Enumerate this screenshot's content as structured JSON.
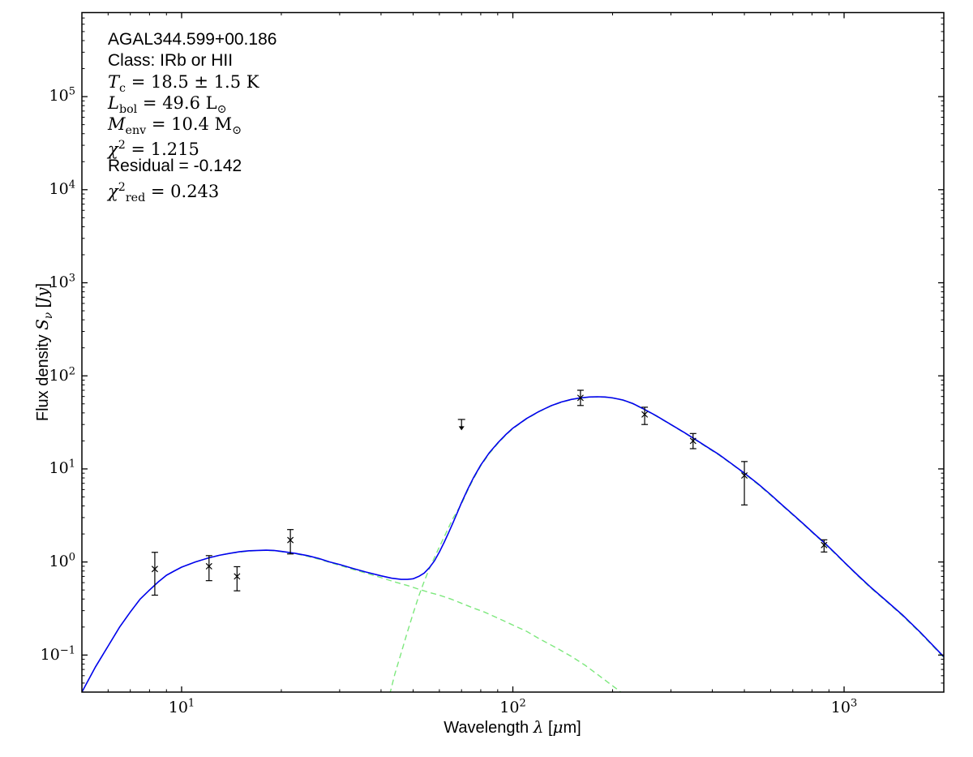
{
  "chart_data": {
    "type": "line",
    "description": "Spectral energy distribution (SED) of a dense clump with two-component greybody fit",
    "xlabel": "Wavelength *λ* [*μ*m]",
    "ylabel": "Flux density *S*_{*ν*} [*Jy*]",
    "x_scale": "log",
    "y_scale": "log",
    "xlim": [
      5,
      2000
    ],
    "ylim": [
      0.04,
      800000
    ],
    "x_major_tick_exponents": [
      1,
      2,
      3
    ],
    "y_major_tick_exponents": [
      -1,
      0,
      1,
      2,
      3,
      4,
      5
    ],
    "grid": false,
    "legend": "none",
    "colors": {
      "model_total": "#0000ee",
      "components": "#7de87d",
      "data": "#000000",
      "axes": "#000000"
    },
    "annotations": [
      {
        "name": "source-name",
        "font": "sans",
        "text": "AGAL344.599+00.186"
      },
      {
        "name": "source-class",
        "font": "sans",
        "text": "Class: IRb or HII"
      },
      {
        "name": "dust-temperature",
        "font": "math",
        "text": "*T*_{c} = 18.5 ± 1.5 K"
      },
      {
        "name": "bolometric-luminosity",
        "font": "math",
        "text": "*L*_{bol} = 49.6 L_{⊙}"
      },
      {
        "name": "envelope-mass",
        "font": "math",
        "text": "*M*_{env} = 10.4 M_{⊙}"
      },
      {
        "name": "chi-squared",
        "font": "math",
        "text": "*χ*^{2} = 1.215"
      },
      {
        "name": "residual",
        "font": "sans",
        "text": "Residual = -0.142"
      },
      {
        "name": "chi-squared-reduced",
        "font": "math",
        "text": "*χ*^{2}_{red} = 0.243"
      }
    ],
    "series": [
      {
        "name": "cold-component-curve",
        "style": "dashed",
        "color": "#7de87d",
        "points": [
          [
            42.5,
            0.038
          ],
          [
            44,
            0.062
          ],
          [
            46,
            0.105
          ],
          [
            48,
            0.175
          ],
          [
            50,
            0.28
          ],
          [
            52,
            0.43
          ],
          [
            54,
            0.62
          ],
          [
            56,
            0.85
          ],
          [
            58,
            1.12
          ],
          [
            60,
            1.45
          ],
          [
            62,
            1.85
          ],
          [
            64,
            2.35
          ],
          [
            66,
            2.95
          ],
          [
            68,
            3.55
          ],
          [
            70,
            4.2
          ],
          [
            73,
            5.85
          ],
          [
            76,
            7.8
          ],
          [
            80,
            10.8
          ],
          [
            85,
            14.7
          ],
          [
            90,
            18.7
          ],
          [
            95,
            22.9
          ],
          [
            100,
            27.1
          ],
          [
            110,
            34.5
          ],
          [
            120,
            41.2
          ],
          [
            130,
            47.2
          ],
          [
            140,
            52.0
          ],
          [
            150,
            55.5
          ],
          [
            160,
            57.7
          ],
          [
            170,
            58.9
          ],
          [
            180,
            59.3
          ],
          [
            190,
            58.9
          ],
          [
            200,
            57.7
          ],
          [
            215,
            54.7
          ],
          [
            230,
            50.2
          ],
          [
            250,
            43.2
          ],
          [
            270,
            37.2
          ],
          [
            300,
            29.8
          ],
          [
            330,
            24.3
          ],
          [
            350,
            21.3
          ],
          [
            380,
            17.6
          ],
          [
            420,
            14.0
          ],
          [
            460,
            11.1
          ],
          [
            500,
            8.9
          ],
          [
            550,
            6.8
          ],
          [
            600,
            5.2
          ],
          [
            650,
            4.05
          ],
          [
            700,
            3.2
          ],
          [
            760,
            2.47
          ],
          [
            820,
            1.92
          ],
          [
            870,
            1.6
          ],
          [
            950,
            1.18
          ],
          [
            1000,
            0.99
          ],
          [
            1100,
            0.71
          ],
          [
            1200,
            0.53
          ],
          [
            1350,
            0.37
          ],
          [
            1500,
            0.265
          ],
          [
            1700,
            0.172
          ],
          [
            2000,
            0.094
          ]
        ]
      },
      {
        "name": "warm-component-curve",
        "style": "dashed",
        "color": "#7de87d",
        "points": [
          [
            5,
            0.04
          ],
          [
            5.5,
            0.075
          ],
          [
            6,
            0.125
          ],
          [
            6.5,
            0.2
          ],
          [
            7,
            0.29
          ],
          [
            7.5,
            0.4
          ],
          [
            8,
            0.5
          ],
          [
            8.5,
            0.61
          ],
          [
            9,
            0.72
          ],
          [
            9.5,
            0.8
          ],
          [
            10,
            0.88
          ],
          [
            11,
            1.0
          ],
          [
            12,
            1.1
          ],
          [
            13,
            1.18
          ],
          [
            14,
            1.24
          ],
          [
            15,
            1.28
          ],
          [
            16,
            1.31
          ],
          [
            17,
            1.33
          ],
          [
            18,
            1.33
          ],
          [
            19,
            1.32
          ],
          [
            20,
            1.29
          ],
          [
            22,
            1.23
          ],
          [
            24,
            1.15
          ],
          [
            26,
            1.07
          ],
          [
            28,
            0.99
          ],
          [
            30,
            0.92
          ],
          [
            33,
            0.83
          ],
          [
            36,
            0.76
          ],
          [
            40,
            0.68
          ],
          [
            44,
            0.61
          ],
          [
            48,
            0.56
          ],
          [
            52,
            0.51
          ],
          [
            56,
            0.47
          ],
          [
            60,
            0.44
          ],
          [
            65,
            0.4
          ],
          [
            70,
            0.36
          ],
          [
            76,
            0.32
          ],
          [
            82,
            0.29
          ],
          [
            90,
            0.25
          ],
          [
            100,
            0.21
          ],
          [
            110,
            0.18
          ],
          [
            120,
            0.15
          ],
          [
            135,
            0.12
          ],
          [
            150,
            0.097
          ],
          [
            165,
            0.078
          ],
          [
            180,
            0.062
          ],
          [
            195,
            0.05
          ],
          [
            210,
            0.041
          ],
          [
            218,
            0.037
          ]
        ]
      },
      {
        "name": "model-fit-curve",
        "style": "solid",
        "color": "#0000ee",
        "points": [
          [
            5,
            0.04
          ],
          [
            5.5,
            0.075
          ],
          [
            6,
            0.125
          ],
          [
            6.5,
            0.2
          ],
          [
            7,
            0.29
          ],
          [
            7.5,
            0.4
          ],
          [
            8,
            0.5
          ],
          [
            8.5,
            0.61
          ],
          [
            9,
            0.72
          ],
          [
            9.5,
            0.8
          ],
          [
            10,
            0.88
          ],
          [
            11,
            1.0
          ],
          [
            12,
            1.1
          ],
          [
            13,
            1.18
          ],
          [
            14,
            1.24
          ],
          [
            15,
            1.29
          ],
          [
            16,
            1.32
          ],
          [
            17,
            1.33
          ],
          [
            18,
            1.34
          ],
          [
            19,
            1.33
          ],
          [
            20,
            1.3
          ],
          [
            22,
            1.24
          ],
          [
            24,
            1.17
          ],
          [
            26,
            1.09
          ],
          [
            28,
            1.0
          ],
          [
            30,
            0.94
          ],
          [
            33,
            0.85
          ],
          [
            36,
            0.78
          ],
          [
            40,
            0.71
          ],
          [
            43,
            0.67
          ],
          [
            46,
            0.65
          ],
          [
            48,
            0.65
          ],
          [
            50,
            0.66
          ],
          [
            52,
            0.7
          ],
          [
            54,
            0.76
          ],
          [
            56,
            0.87
          ],
          [
            58,
            1.03
          ],
          [
            60,
            1.28
          ],
          [
            62,
            1.62
          ],
          [
            64,
            2.07
          ],
          [
            66,
            2.65
          ],
          [
            68,
            3.4
          ],
          [
            70,
            4.35
          ],
          [
            73,
            6.0
          ],
          [
            76,
            8.0
          ],
          [
            80,
            11.0
          ],
          [
            85,
            15.0
          ],
          [
            90,
            19.0
          ],
          [
            95,
            23.2
          ],
          [
            100,
            27.4
          ],
          [
            110,
            34.8
          ],
          [
            120,
            41.5
          ],
          [
            130,
            47.5
          ],
          [
            140,
            52.3
          ],
          [
            150,
            55.8
          ],
          [
            160,
            58.0
          ],
          [
            170,
            59.2
          ],
          [
            180,
            59.6
          ],
          [
            190,
            59.2
          ],
          [
            200,
            58.0
          ],
          [
            215,
            55.0
          ],
          [
            230,
            50.5
          ],
          [
            250,
            43.5
          ],
          [
            270,
            37.5
          ],
          [
            300,
            30.0
          ],
          [
            330,
            24.5
          ],
          [
            350,
            21.5
          ],
          [
            380,
            17.8
          ],
          [
            420,
            14.2
          ],
          [
            460,
            11.2
          ],
          [
            500,
            9.0
          ],
          [
            550,
            6.9
          ],
          [
            600,
            5.3
          ],
          [
            650,
            4.1
          ],
          [
            700,
            3.25
          ],
          [
            760,
            2.5
          ],
          [
            820,
            1.95
          ],
          [
            870,
            1.62
          ],
          [
            950,
            1.2
          ],
          [
            1000,
            1.0
          ],
          [
            1100,
            0.72
          ],
          [
            1200,
            0.54
          ],
          [
            1350,
            0.375
          ],
          [
            1500,
            0.27
          ],
          [
            1700,
            0.175
          ],
          [
            2000,
            0.096
          ]
        ]
      }
    ],
    "data_points": [
      {
        "name": "8.3um",
        "wavelength": 8.3,
        "flux": 0.84,
        "flux_upper": 1.27,
        "flux_lower": 0.44,
        "type": "detection"
      },
      {
        "name": "12.1um",
        "wavelength": 12.1,
        "flux": 0.9,
        "flux_upper": 1.17,
        "flux_lower": 0.63,
        "type": "detection"
      },
      {
        "name": "14.7um",
        "wavelength": 14.7,
        "flux": 0.7,
        "flux_upper": 0.89,
        "flux_lower": 0.49,
        "type": "detection"
      },
      {
        "name": "21.3um",
        "wavelength": 21.3,
        "flux": 1.72,
        "flux_upper": 2.23,
        "flux_lower": 1.22,
        "type": "detection"
      },
      {
        "name": "70um",
        "wavelength": 70,
        "flux": 34,
        "arrow_tip_flux": 26,
        "type": "upper-limit"
      },
      {
        "name": "160um",
        "wavelength": 160,
        "flux": 58,
        "flux_upper": 70,
        "flux_lower": 48,
        "type": "detection"
      },
      {
        "name": "250um",
        "wavelength": 250,
        "flux": 38.5,
        "flux_upper": 46,
        "flux_lower": 30,
        "type": "detection"
      },
      {
        "name": "350um",
        "wavelength": 350,
        "flux": 20,
        "flux_upper": 24,
        "flux_lower": 16.5,
        "type": "detection"
      },
      {
        "name": "500um",
        "wavelength": 500,
        "flux": 8.5,
        "flux_upper": 12,
        "flux_lower": 4.1,
        "type": "detection"
      },
      {
        "name": "870um",
        "wavelength": 870,
        "flux": 1.52,
        "flux_upper": 1.73,
        "flux_lower": 1.28,
        "type": "detection"
      }
    ]
  }
}
